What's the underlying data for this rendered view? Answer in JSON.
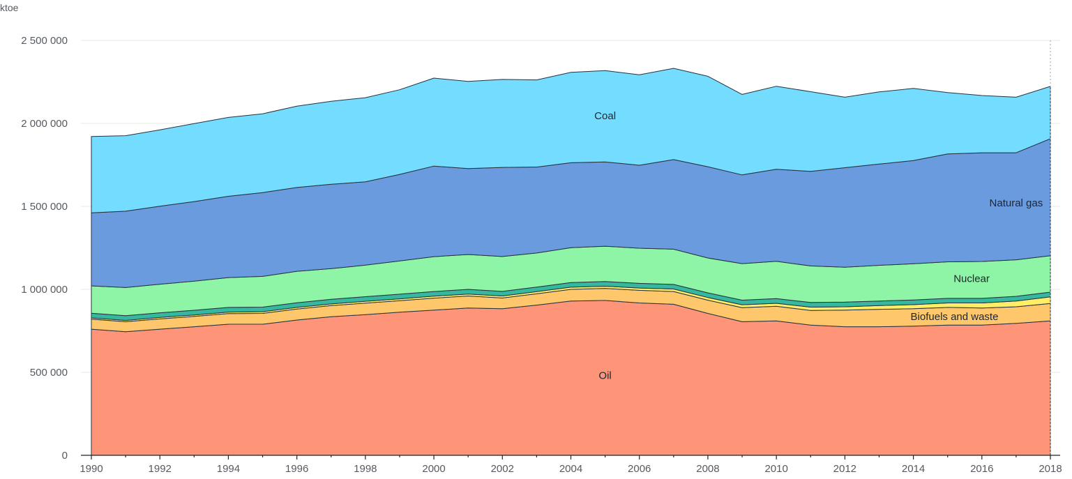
{
  "chart_data": {
    "type": "area",
    "stacked": true,
    "unit_label": "ktoe",
    "xlim": [
      1990,
      2018
    ],
    "ylim": [
      0,
      2500000
    ],
    "y_ticks": [
      0,
      500000,
      1000000,
      1500000,
      2000000,
      2500000
    ],
    "y_tick_labels": [
      "0",
      "500 000",
      "1 000 000",
      "1 500 000",
      "2 000 000",
      "2 500 000"
    ],
    "x_ticks": [
      1990,
      1992,
      1994,
      1996,
      1998,
      2000,
      2002,
      2004,
      2006,
      2008,
      2010,
      2012,
      2014,
      2016,
      2018
    ],
    "x_tick_labels": [
      "1990",
      "1992",
      "1994",
      "1996",
      "1998",
      "2000",
      "2002",
      "2004",
      "2006",
      "2008",
      "2010",
      "2012",
      "2014",
      "2016",
      "2018"
    ],
    "grid": true,
    "x": [
      1990,
      1991,
      1992,
      1993,
      1994,
      1995,
      1996,
      1997,
      1998,
      1999,
      2000,
      2001,
      2002,
      2003,
      2004,
      2005,
      2006,
      2007,
      2008,
      2009,
      2010,
      2011,
      2012,
      2013,
      2014,
      2015,
      2016,
      2017,
      2018
    ],
    "series": [
      {
        "name": "Oil",
        "color": "#ff9578",
        "label_at": [
          2005,
          460000
        ],
        "values": [
          760000,
          745000,
          760000,
          775000,
          790000,
          790000,
          815000,
          835000,
          848000,
          862000,
          875000,
          888000,
          883000,
          905000,
          930000,
          933000,
          918000,
          910000,
          855000,
          805000,
          810000,
          785000,
          775000,
          775000,
          778000,
          785000,
          785000,
          795000,
          810000
        ]
      },
      {
        "name": "Biofuels and waste",
        "color": "#ffc76b",
        "label_at": [
          2015.2,
          815000
        ],
        "values": [
          60000,
          60000,
          62000,
          62000,
          64000,
          65000,
          66000,
          67000,
          69000,
          70000,
          72000,
          72000,
          65000,
          68000,
          70000,
          73000,
          76000,
          77000,
          80000,
          85000,
          88000,
          88000,
          100000,
          105000,
          105000,
          106000,
          103000,
          100000,
          105000
        ]
      },
      {
        "color": "#ffee66",
        "values": [
          8000,
          8000,
          9000,
          9000,
          9000,
          10000,
          10000,
          10000,
          11000,
          11000,
          12000,
          12000,
          12000,
          13000,
          13000,
          13000,
          14000,
          15000,
          16000,
          17000,
          18000,
          20000,
          20000,
          22000,
          25000,
          27000,
          30000,
          35000,
          40000
        ]
      },
      {
        "color": "#36b8a0",
        "values": [
          28000,
          28000,
          28000,
          28000,
          28000,
          28000,
          28000,
          28000,
          28000,
          28000,
          28000,
          28000,
          28000,
          28000,
          28000,
          28000,
          28000,
          28000,
          28000,
          28000,
          28000,
          28000,
          28000,
          28000,
          28000,
          28000,
          28000,
          28000,
          28000
        ]
      },
      {
        "name": "Nuclear",
        "color": "#8ef5a6",
        "label_at": [
          2015.7,
          1045000
        ],
        "values": [
          165000,
          170000,
          172000,
          175000,
          180000,
          185000,
          190000,
          185000,
          190000,
          200000,
          210000,
          210000,
          210000,
          205000,
          210000,
          213000,
          212000,
          212000,
          210000,
          220000,
          225000,
          220000,
          210000,
          215000,
          218000,
          220000,
          222000,
          220000,
          220000
        ]
      },
      {
        "name": "Natural gas",
        "color": "#6a9bdf",
        "label_at": [
          2017.0,
          1500000
        ],
        "values": [
          440000,
          460000,
          470000,
          480000,
          490000,
          505000,
          505000,
          508000,
          502000,
          522000,
          546000,
          518000,
          537000,
          518000,
          512000,
          508000,
          500000,
          540000,
          550000,
          535000,
          555000,
          570000,
          600000,
          610000,
          622000,
          650000,
          655000,
          645000,
          705000
        ]
      },
      {
        "name": "Coal",
        "color": "#74dcff",
        "label_at": [
          2005,
          2025000
        ],
        "values": [
          460000,
          455000,
          460000,
          470000,
          475000,
          475000,
          490000,
          500000,
          507000,
          510000,
          530000,
          525000,
          530000,
          525000,
          545000,
          550000,
          545000,
          550000,
          545000,
          485000,
          500000,
          480000,
          425000,
          435000,
          435000,
          370000,
          345000,
          335000,
          315000
        ]
      }
    ],
    "marker_x": 2018
  }
}
